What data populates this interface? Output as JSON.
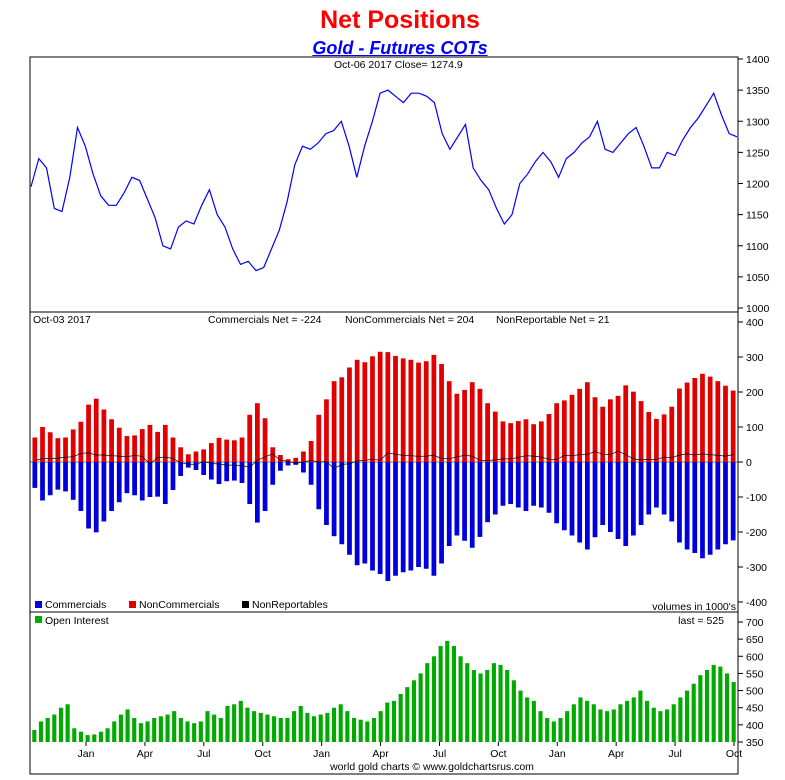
{
  "title": "Net Positions",
  "subtitle": "Gold - Futures COTs",
  "footer": "world gold charts © www.goldchartsrus.com",
  "colors": {
    "price": "#0000ff",
    "commercials": "#0000dd",
    "noncommercials": "#e00000",
    "nonreportables": "#000000",
    "open_interest": "#00aa00",
    "title": "#ff0000",
    "subtitle": "#0000ff"
  },
  "chart_data": [
    {
      "type": "line",
      "panel": "price",
      "header": "Oct-06  2017    Close= 1274.9",
      "ylim": [
        1000,
        1400
      ],
      "yticks": [
        1000,
        1050,
        1100,
        1150,
        1200,
        1250,
        1300,
        1350,
        1400
      ],
      "xticks": [
        "Jan",
        "Apr",
        "Jul",
        "Oct",
        "Jan",
        "Apr",
        "Jul",
        "Oct",
        "Jan",
        "Apr",
        "Jul",
        "Oct"
      ],
      "series": [
        {
          "values": [
            1195,
            1240,
            1225,
            1160,
            1155,
            1210,
            1290,
            1260,
            1215,
            1180,
            1165,
            1165,
            1185,
            1210,
            1205,
            1175,
            1145,
            1100,
            1095,
            1130,
            1140,
            1135,
            1165,
            1190,
            1150,
            1130,
            1095,
            1070,
            1075,
            1060,
            1065,
            1095,
            1125,
            1170,
            1230,
            1260,
            1255,
            1265,
            1280,
            1285,
            1300,
            1260,
            1210,
            1260,
            1300,
            1345,
            1350,
            1340,
            1330,
            1345,
            1345,
            1340,
            1330,
            1280,
            1255,
            1275,
            1295,
            1225,
            1205,
            1190,
            1160,
            1135,
            1150,
            1200,
            1215,
            1235,
            1250,
            1235,
            1210,
            1240,
            1250,
            1265,
            1275,
            1300,
            1255,
            1250,
            1265,
            1280,
            1290,
            1260,
            1225,
            1225,
            1250,
            1245,
            1270,
            1290,
            1305,
            1325,
            1345,
            1310,
            1280,
            1275
          ]
        }
      ]
    },
    {
      "type": "bar",
      "panel": "net_positions",
      "header": "Oct-03  2017",
      "ylim": [
        -400,
        400
      ],
      "yticks": [
        -400,
        -300,
        -200,
        -100,
        0,
        100,
        200,
        300,
        400
      ],
      "annotations": [
        "Commercials Net = -224",
        "NonCommercials Net = 204",
        "NonReportable Net = 21",
        "volumes in 1000's"
      ],
      "legend": [
        "Commercials",
        "NonCommercials",
        "NonReportables"
      ],
      "series": [
        {
          "name": "Commercials",
          "values": [
            -74,
            -110,
            -95,
            -79,
            -84,
            -108,
            -140,
            -190,
            -201,
            -170,
            -140,
            -115,
            -89,
            -95,
            -110,
            -100,
            -99,
            -120,
            -80,
            -40,
            -16,
            -23,
            -37,
            -50,
            -63,
            -55,
            -53,
            -60,
            -120,
            -173,
            -140,
            -65,
            -25,
            -10,
            -8,
            -30,
            -65,
            -135,
            -180,
            -212,
            -235,
            -265,
            -295,
            -290,
            -310,
            -320,
            -340,
            -325,
            -315,
            -310,
            -300,
            -305,
            -325,
            -290,
            -240,
            -210,
            -225,
            -245,
            -214,
            -172,
            -150,
            -125,
            -120,
            -130,
            -140,
            -125,
            -130,
            -145,
            -175,
            -195,
            -210,
            -230,
            -250,
            -215,
            -180,
            -200,
            -220,
            -240,
            -210,
            -180,
            -150,
            -130,
            -150,
            -170,
            -230,
            -250,
            -260,
            -275,
            -265,
            -250,
            -235,
            -224
          ]
        },
        {
          "name": "NonCommercials",
          "values": [
            70,
            100,
            85,
            68,
            70,
            93,
            115,
            164,
            181,
            150,
            122,
            98,
            74,
            76,
            94,
            106,
            86,
            106,
            70,
            42,
            22,
            30,
            36,
            54,
            69,
            64,
            62,
            70,
            135,
            168,
            125,
            42,
            20,
            8,
            12,
            30,
            60,
            135,
            179,
            231,
            242,
            270,
            292,
            285,
            302,
            315,
            314,
            303,
            296,
            292,
            284,
            288,
            306,
            280,
            231,
            195,
            206,
            228,
            209,
            168,
            144,
            116,
            111,
            117,
            122,
            108,
            116,
            137,
            168,
            176,
            192,
            209,
            228,
            185,
            158,
            179,
            189,
            219,
            201,
            174,
            143,
            123,
            136,
            158,
            210,
            227,
            240,
            252,
            244,
            231,
            218,
            204
          ]
        },
        {
          "name": "NonReportables",
          "values": [
            4,
            10,
            10,
            11,
            14,
            15,
            25,
            26,
            20,
            20,
            18,
            17,
            15,
            19,
            16,
            -6,
            13,
            14,
            10,
            -2,
            -6,
            -7,
            1,
            -4,
            -6,
            -9,
            -9,
            -10,
            -15,
            5,
            15,
            23,
            5,
            2,
            -4,
            0,
            5,
            0,
            1,
            -19,
            -7,
            -5,
            3,
            5,
            8,
            5,
            26,
            22,
            19,
            18,
            16,
            17,
            19,
            10,
            9,
            15,
            19,
            17,
            5,
            4,
            6,
            9,
            9,
            13,
            18,
            17,
            14,
            8,
            7,
            19,
            18,
            21,
            22,
            30,
            22,
            21,
            31,
            21,
            9,
            6,
            7,
            7,
            14,
            12,
            20,
            23,
            20,
            23,
            21,
            19,
            17,
            21
          ]
        }
      ]
    },
    {
      "type": "bar",
      "panel": "open_interest",
      "header": "Open Interest",
      "annotations": [
        "last = 525"
      ],
      "ylim": [
        350,
        700
      ],
      "yticks": [
        350,
        400,
        450,
        500,
        550,
        600,
        650,
        700
      ],
      "xticks": [
        "Jan",
        "Apr",
        "Jul",
        "Oct",
        "Jan",
        "Apr",
        "Jul",
        "Oct",
        "Jan",
        "Apr",
        "Jul",
        "Oct"
      ],
      "series": [
        {
          "name": "Open Interest",
          "values": [
            385,
            410,
            420,
            430,
            450,
            460,
            390,
            380,
            370,
            372,
            380,
            390,
            410,
            430,
            445,
            420,
            405,
            410,
            420,
            425,
            430,
            440,
            420,
            410,
            405,
            410,
            440,
            430,
            420,
            455,
            460,
            470,
            450,
            440,
            435,
            430,
            425,
            420,
            420,
            440,
            455,
            435,
            425,
            430,
            435,
            450,
            460,
            440,
            420,
            415,
            410,
            420,
            440,
            465,
            470,
            490,
            510,
            530,
            550,
            580,
            600,
            630,
            645,
            630,
            600,
            580,
            560,
            550,
            560,
            580,
            575,
            560,
            530,
            500,
            480,
            470,
            440,
            420,
            410,
            420,
            440,
            460,
            480,
            470,
            460,
            445,
            440,
            445,
            460,
            470,
            480,
            500,
            470,
            450,
            440,
            445,
            460,
            480,
            500,
            520,
            545,
            560,
            575,
            570,
            550,
            525
          ]
        }
      ]
    }
  ]
}
